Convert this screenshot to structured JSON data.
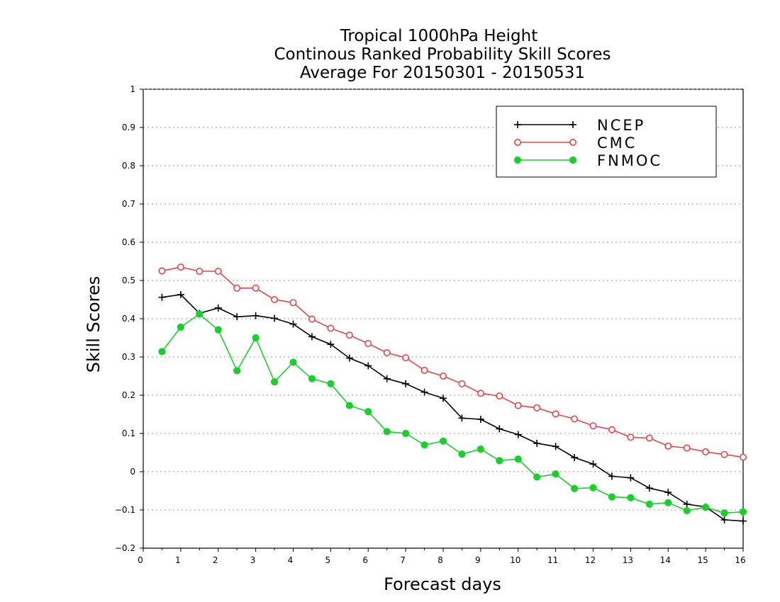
{
  "chart_data": {
    "type": "line",
    "title": [
      "Tropical 1000hPa Height",
      "Continous Ranked Probability Skill Scores",
      "Average For 20150301 - 20150531"
    ],
    "xlabel": "Forecast days",
    "ylabel": "Skill Scores",
    "xlim": [
      0,
      16
    ],
    "ylim": [
      -0.2,
      1
    ],
    "xticks": [
      "0",
      "1",
      "2",
      "3",
      "4",
      "5",
      "6",
      "7",
      "8",
      "9",
      "10",
      "11",
      "12",
      "13",
      "14",
      "15",
      "16"
    ],
    "yticks": [
      "−0.2",
      "−0.1",
      "0",
      "0.1",
      "0.2",
      "0.3",
      "0.4",
      "0.5",
      "0.6",
      "0.7",
      "0.8",
      "0.9",
      "1"
    ],
    "grid": true,
    "legend_position": "top-right",
    "x": [
      0.5,
      1,
      1.5,
      2,
      2.5,
      3,
      3.5,
      4,
      4.5,
      5,
      5.5,
      6,
      6.5,
      7,
      7.5,
      8,
      8.5,
      9,
      9.5,
      10,
      10.5,
      11,
      11.5,
      12,
      12.5,
      13,
      13.5,
      14,
      14.5,
      15,
      15.5,
      16
    ],
    "series": [
      {
        "name": "NCEP",
        "color": "#000000",
        "marker": "plus",
        "values": [
          0.456,
          0.463,
          0.414,
          0.428,
          0.405,
          0.408,
          0.401,
          0.386,
          0.353,
          0.333,
          0.297,
          0.277,
          0.243,
          0.23,
          0.208,
          0.192,
          0.14,
          0.137,
          0.112,
          0.097,
          0.074,
          0.066,
          0.037,
          0.02,
          -0.012,
          -0.016,
          -0.043,
          -0.054,
          -0.085,
          -0.092,
          -0.126,
          -0.129
        ]
      },
      {
        "name": "CMC",
        "color": "#e8434a",
        "marker": "open-circle",
        "values": [
          0.525,
          0.535,
          0.524,
          0.524,
          0.48,
          0.48,
          0.45,
          0.442,
          0.399,
          0.375,
          0.357,
          0.335,
          0.311,
          0.298,
          0.265,
          0.25,
          0.23,
          0.205,
          0.198,
          0.173,
          0.167,
          0.151,
          0.138,
          0.12,
          0.11,
          0.09,
          0.088,
          0.067,
          0.062,
          0.052,
          0.045,
          0.038
        ]
      },
      {
        "name": "FNMOC",
        "color": "#17d12a",
        "marker": "filled-circle",
        "values": [
          0.314,
          0.378,
          0.412,
          0.371,
          0.264,
          0.35,
          0.235,
          0.286,
          0.243,
          0.23,
          0.173,
          0.157,
          0.105,
          0.1,
          0.07,
          0.08,
          0.046,
          0.059,
          0.029,
          0.033,
          -0.014,
          -0.006,
          -0.044,
          -0.042,
          -0.066,
          -0.068,
          -0.085,
          -0.081,
          -0.102,
          -0.093,
          -0.108,
          -0.105
        ]
      }
    ]
  }
}
